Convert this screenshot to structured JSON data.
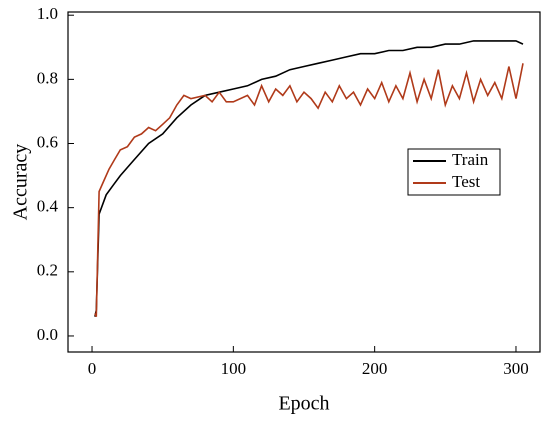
{
  "chart_data": {
    "type": "line",
    "x_label": "Epoch",
    "y_label": "Accuracy",
    "xlim": [
      -17,
      317
    ],
    "ylim": [
      -0.05,
      1.01
    ],
    "xticks": [
      0,
      100,
      200,
      300
    ],
    "yticks": [
      {
        "value": 0,
        "label": "0.0"
      },
      0.2,
      0.4,
      0.6,
      0.8,
      {
        "value": 1,
        "label": "1.0"
      }
    ],
    "grid": false,
    "legend": "right",
    "series": [
      {
        "name": "Train",
        "color": "#000000",
        "x": [
          2,
          3,
          5,
          10,
          15,
          20,
          30,
          40,
          50,
          60,
          70,
          80,
          90,
          100,
          110,
          120,
          130,
          140,
          150,
          160,
          170,
          180,
          190,
          200,
          210,
          220,
          230,
          240,
          250,
          260,
          270,
          280,
          290,
          300,
          305
        ],
        "values": [
          0.06,
          0.08,
          0.38,
          0.44,
          0.47,
          0.5,
          0.55,
          0.6,
          0.63,
          0.68,
          0.72,
          0.75,
          0.76,
          0.77,
          0.78,
          0.8,
          0.81,
          0.83,
          0.84,
          0.85,
          0.86,
          0.87,
          0.88,
          0.88,
          0.89,
          0.89,
          0.9,
          0.9,
          0.91,
          0.91,
          0.92,
          0.92,
          0.92,
          0.92,
          0.91
        ]
      },
      {
        "name": "Test",
        "color": "#b03a1a",
        "x": [
          2,
          3,
          5,
          8,
          12,
          16,
          20,
          25,
          30,
          35,
          40,
          45,
          50,
          55,
          60,
          65,
          70,
          80,
          85,
          90,
          95,
          100,
          110,
          115,
          120,
          125,
          130,
          135,
          140,
          145,
          150,
          155,
          160,
          165,
          170,
          175,
          180,
          185,
          190,
          195,
          200,
          205,
          210,
          215,
          220,
          225,
          230,
          235,
          240,
          245,
          250,
          255,
          260,
          265,
          270,
          275,
          280,
          285,
          290,
          295,
          300,
          305
        ],
        "values": [
          0.07,
          0.06,
          0.45,
          0.48,
          0.52,
          0.55,
          0.58,
          0.59,
          0.62,
          0.63,
          0.65,
          0.64,
          0.66,
          0.68,
          0.72,
          0.75,
          0.74,
          0.75,
          0.73,
          0.76,
          0.73,
          0.73,
          0.75,
          0.72,
          0.78,
          0.73,
          0.77,
          0.75,
          0.78,
          0.73,
          0.76,
          0.74,
          0.71,
          0.76,
          0.73,
          0.78,
          0.74,
          0.76,
          0.72,
          0.77,
          0.74,
          0.79,
          0.73,
          0.78,
          0.74,
          0.82,
          0.73,
          0.8,
          0.74,
          0.83,
          0.72,
          0.78,
          0.74,
          0.82,
          0.73,
          0.8,
          0.75,
          0.79,
          0.74,
          0.84,
          0.74,
          0.85
        ]
      }
    ]
  }
}
